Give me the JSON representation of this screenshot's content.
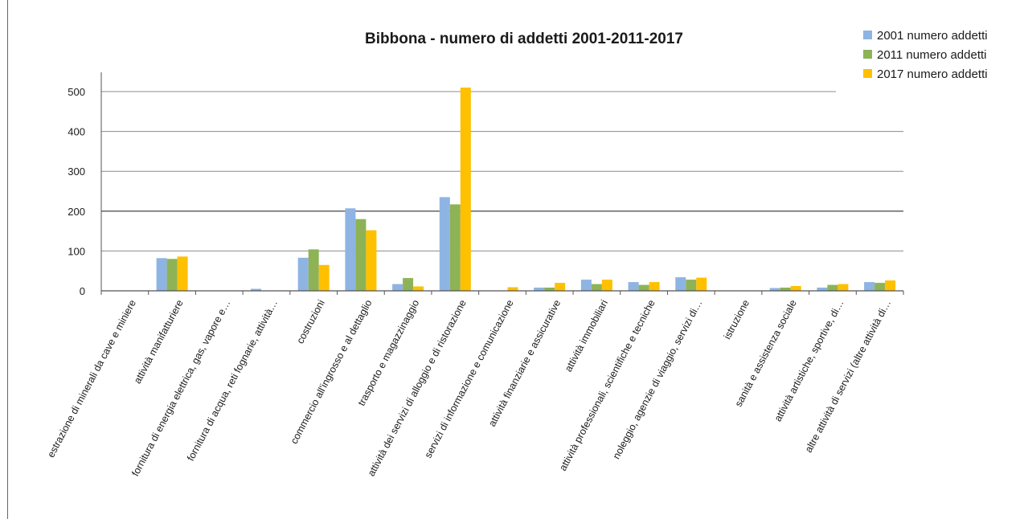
{
  "chart_data": {
    "type": "bar",
    "title": "Bibbona - numero di addetti 2001-2011-2017",
    "xlabel": "",
    "ylabel": "",
    "ylim": [
      0,
      550
    ],
    "yticks": [
      0,
      100,
      200,
      300,
      400,
      500
    ],
    "grid": true,
    "legend": "top-right",
    "categories": [
      "estrazione di minerali da cave e miniere",
      "attività manifatturiere",
      "fornitura di energia elettrica, gas, vapore e…",
      "fornitura di acqua, reti fognarie, attività…",
      "costruzioni",
      "commercio all'ingrosso e al dettaglio",
      "trasporto e magazzinaggio",
      "attività dei servizi di alloggio e di ristorazione",
      "servizi di informazione e comunicazione",
      "attività finanziarie e assicurative",
      "attività immobiliari",
      "attività professionali, scientifiche e tecniche",
      "noleggio, agenzie di viaggio, servizi di…",
      "istruzione",
      "sanità e assistenza sociale",
      "attività artistiche, sportive, di…",
      "altre attività di servizi (altre attività di…"
    ],
    "series": [
      {
        "name": "2001 numero addetti",
        "color": "#8EB4E3",
        "values": [
          0,
          82,
          0,
          5,
          83,
          207,
          17,
          235,
          0,
          8,
          28,
          22,
          34,
          0,
          7,
          8,
          22
        ]
      },
      {
        "name": "2011 numero addetti",
        "color": "#8DB356",
        "values": [
          0,
          80,
          0,
          0,
          104,
          180,
          32,
          217,
          0,
          8,
          17,
          15,
          28,
          0,
          8,
          15,
          20
        ]
      },
      {
        "name": "2017 numero addetti",
        "color": "#FFC000",
        "values": [
          0,
          86,
          0,
          0,
          65,
          152,
          11,
          510,
          9,
          20,
          28,
          22,
          33,
          0,
          12,
          17,
          26
        ]
      }
    ]
  }
}
